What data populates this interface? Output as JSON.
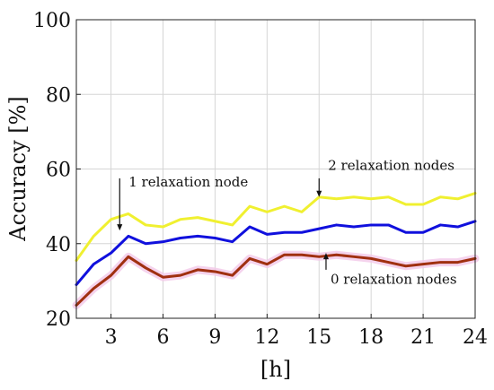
{
  "chart_data": {
    "type": "line",
    "xlabel": "[h]",
    "ylabel": "Accuracy [%]",
    "xlim": [
      1,
      24
    ],
    "ylim": [
      20,
      100
    ],
    "xticks": [
      3,
      6,
      9,
      12,
      15,
      18,
      21,
      24
    ],
    "yticks": [
      20,
      40,
      60,
      80,
      100
    ],
    "grid": true,
    "x": [
      1,
      2,
      3,
      4,
      5,
      6,
      7,
      8,
      9,
      10,
      11,
      12,
      13,
      14,
      15,
      16,
      17,
      18,
      19,
      20,
      21,
      22,
      23,
      24
    ],
    "series": [
      {
        "color": "#f0f030",
        "values": [
          35.5,
          42,
          46.5,
          48,
          45,
          44.5,
          46.5,
          47,
          46,
          45,
          50,
          48.5,
          50,
          48.5,
          52.5,
          52,
          52.5,
          52,
          52.5,
          50.5,
          50.5,
          52.5,
          52,
          53.5
        ]
      },
      {
        "color": "#1010dd",
        "values": [
          29,
          34.5,
          37.5,
          42,
          40,
          40.5,
          41.5,
          42,
          41.5,
          40.5,
          44.5,
          42.5,
          43,
          43,
          44,
          45,
          44.5,
          45,
          45,
          43,
          43,
          45,
          44.5,
          46
        ]
      },
      {
        "color": "#a03010",
        "values": [
          23.5,
          28,
          31.5,
          36.5,
          33.5,
          31,
          31.5,
          33,
          32.5,
          31.5,
          36,
          34.5,
          37,
          37,
          36.5,
          37,
          36.5,
          36,
          35,
          34,
          34.5,
          35,
          35,
          36
        ]
      }
    ],
    "annotations": [
      {
        "text": "1 relaxation node",
        "x": 3.5,
        "y_text": 56.5,
        "arrow_from": 57.5,
        "arrow_to": 43.5
      },
      {
        "text": "2 relaxation nodes",
        "x": 15,
        "y_text": 61,
        "arrow_from": 57.5,
        "arrow_to": 52.5
      },
      {
        "text": "0 relaxation nodes",
        "x": 15.4,
        "y_text": 30.5,
        "arrow_from": 33,
        "arrow_to": 37.5
      }
    ]
  }
}
